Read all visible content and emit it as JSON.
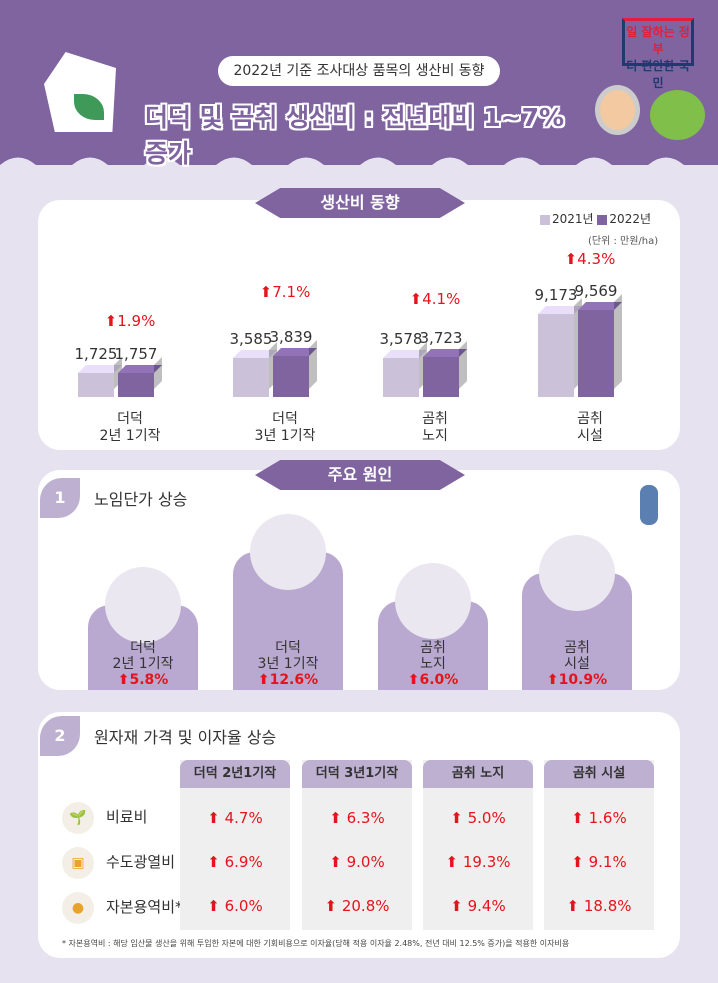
{
  "header": {
    "subtitle": "2022년  기준 조사대상 품목의 생산비 동향",
    "title": "더덕 및 곰취 생산비 : 전년대비 1~7% 증가",
    "logo_line1": "일 잘하는 정부",
    "logo_line2": "더 편안한 국민"
  },
  "section1": {
    "ribbon": "생산비 동향",
    "legend": [
      "2021년",
      "2022년"
    ],
    "unit": "(단위 : 만원/ha)"
  },
  "chart_data": {
    "type": "bar",
    "title": "생산비 동향",
    "ylabel": "만원/ha",
    "categories": [
      "더덕 2년 1기작",
      "더덕 3년 1기작",
      "곰취 노지",
      "곰취 시설"
    ],
    "series": [
      {
        "name": "2021년",
        "values": [
          1725,
          3585,
          3578,
          9173
        ],
        "labels": [
          "1,725",
          "3,585",
          "3,578",
          "9,173"
        ],
        "color": "#cbc2da"
      },
      {
        "name": "2022년",
        "values": [
          1757,
          3839,
          3723,
          9569
        ],
        "labels": [
          "1,757",
          "3,839",
          "3,723",
          "9,569"
        ],
        "color": "#7f64a0"
      }
    ],
    "change": [
      "1.9%",
      "7.1%",
      "4.1%",
      "4.3%"
    ],
    "cat_lines": [
      [
        "더덕",
        "2년 1기작"
      ],
      [
        "더덕",
        "3년 1기작"
      ],
      [
        "곰취",
        "노지"
      ],
      [
        "곰취",
        "시설"
      ]
    ]
  },
  "section2": {
    "ribbon": "주요 원인",
    "num": "1",
    "title": "노임단가 상승",
    "items": [
      {
        "l1": "더덕",
        "l2": "2년 1기작",
        "pct": "5.8%"
      },
      {
        "l1": "더덕",
        "l2": "3년 1기작",
        "pct": "12.6%"
      },
      {
        "l1": "곰취",
        "l2": "노지",
        "pct": "6.0%"
      },
      {
        "l1": "곰취",
        "l2": "시설",
        "pct": "10.9%"
      }
    ]
  },
  "section3": {
    "num": "2",
    "title": "원자재 가격 및 이자율 상승",
    "columns": [
      "더덕 2년1기작",
      "더덕 3년1기작",
      "곰취 노지",
      "곰취 시설"
    ],
    "rows": [
      "비료비",
      "수도광열비",
      "자본용역비*"
    ],
    "values": [
      [
        "4.7%",
        "6.9%",
        "6.0%"
      ],
      [
        "6.3%",
        "9.0%",
        "20.8%"
      ],
      [
        "5.0%",
        "19.3%",
        "9.4%"
      ],
      [
        "1.6%",
        "9.1%",
        "18.8%"
      ]
    ],
    "footnote": "* 자본용역비 : 해당 임산물 생산을 위해 투입한 자본에 대한 기회비용으로 이자율(당해 적용 이자율 2.48%, 전년 대비 12.5% 증가)을 적용한 이자비용"
  }
}
